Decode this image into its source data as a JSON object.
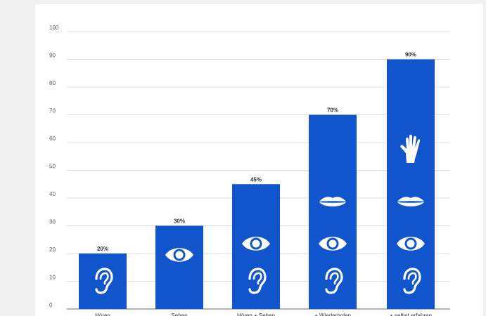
{
  "chart_data": {
    "type": "bar",
    "categories": [
      "Hören",
      "Sehen",
      "Hören + Sehen",
      "+ Wiederholen",
      "+ selbst erfahren"
    ],
    "values": [
      20,
      30,
      45,
      70,
      90
    ],
    "data_labels": [
      "20%",
      "30%",
      "45%",
      "70%",
      "90%"
    ],
    "y_ticks": [
      "0",
      "10",
      "20",
      "30",
      "40",
      "50",
      "60",
      "70",
      "80",
      "90",
      "100"
    ],
    "ylim": [
      0,
      100
    ],
    "grid": true,
    "bar_color": "#1155cc",
    "icons": [
      [
        "ear-icon"
      ],
      [
        "eye-icon"
      ],
      [
        "ear-icon",
        "eye-icon"
      ],
      [
        "ear-icon",
        "eye-icon",
        "lips-icon"
      ],
      [
        "ear-icon",
        "eye-icon",
        "lips-icon",
        "hand-icon"
      ]
    ]
  }
}
